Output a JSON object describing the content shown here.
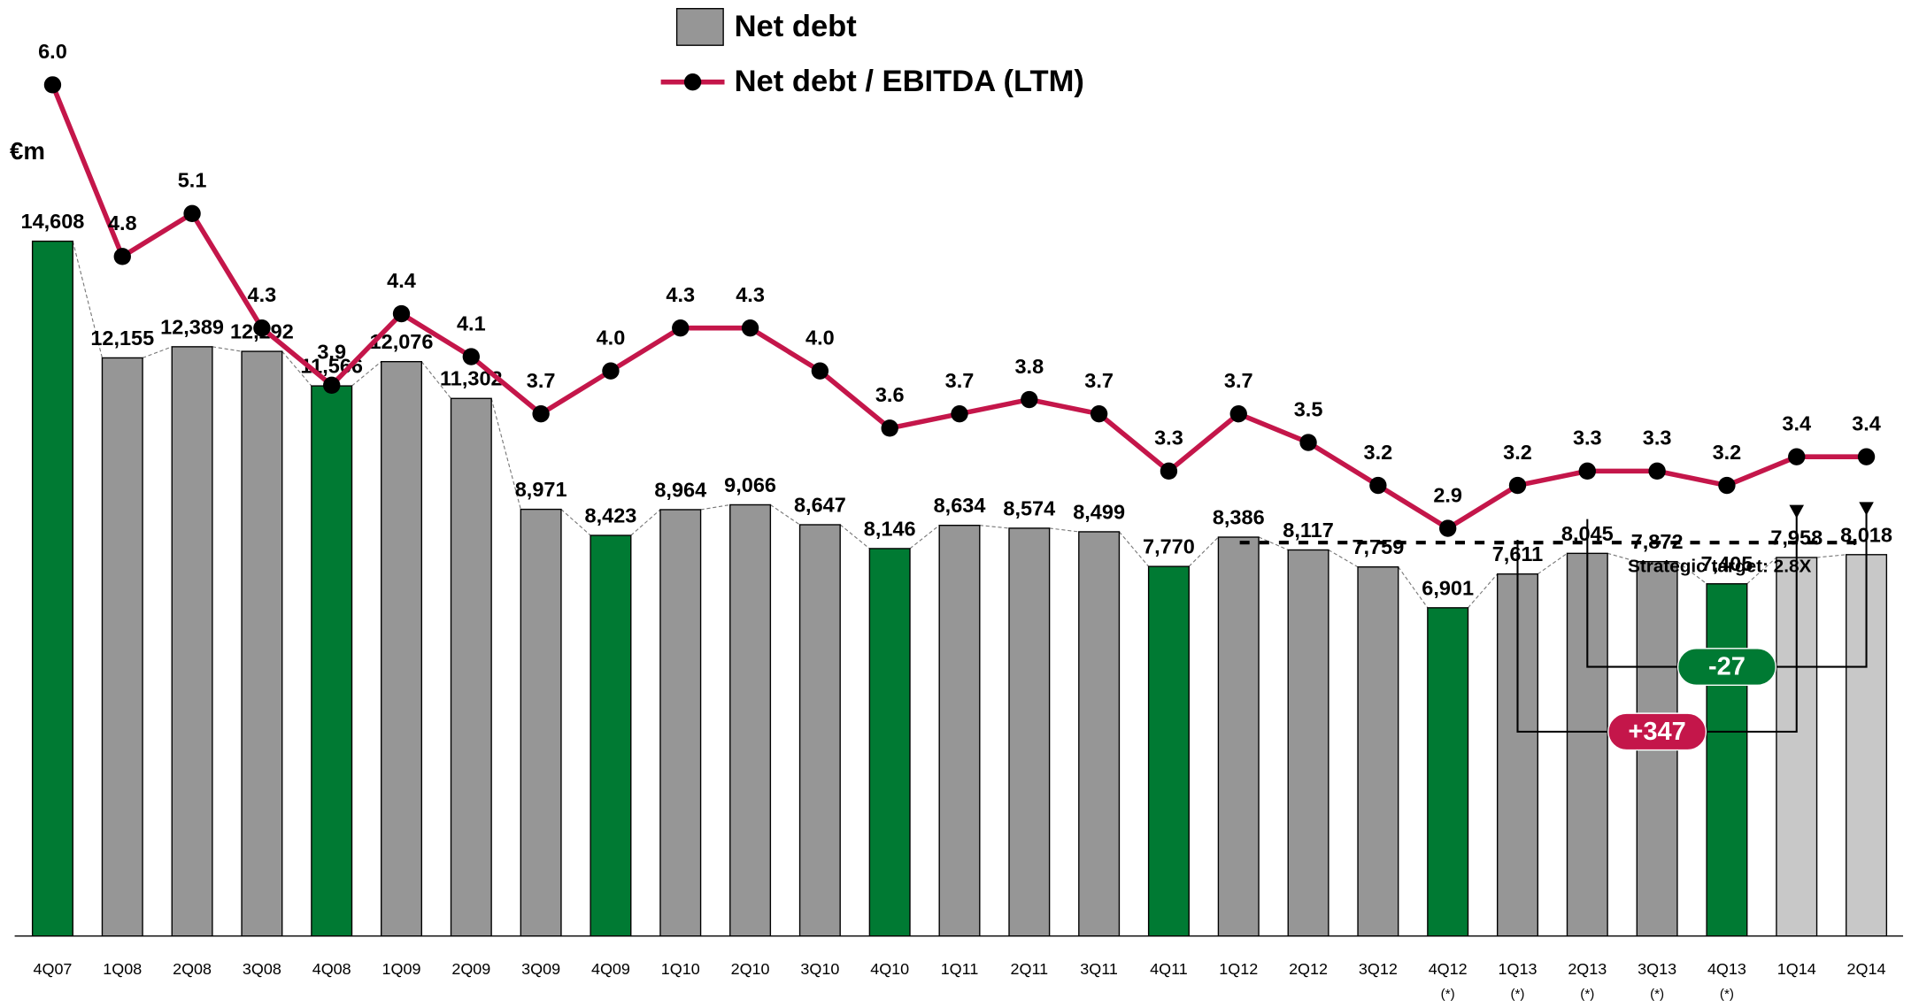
{
  "chart_data": {
    "type": "bar",
    "unit_label": "€m",
    "categories": [
      "4Q07",
      "1Q08",
      "2Q08",
      "3Q08",
      "4Q08",
      "1Q09",
      "2Q09",
      "3Q09",
      "4Q09",
      "1Q10",
      "2Q10",
      "3Q10",
      "4Q10",
      "1Q11",
      "2Q11",
      "3Q11",
      "4Q11",
      "1Q12",
      "2Q12",
      "3Q12",
      "4Q12",
      "1Q13",
      "2Q13",
      "3Q13",
      "4Q13",
      "1Q14",
      "2Q14"
    ],
    "category_footnotes": [
      null,
      null,
      null,
      null,
      null,
      null,
      null,
      null,
      null,
      null,
      null,
      null,
      null,
      null,
      null,
      null,
      null,
      null,
      null,
      null,
      "(*)",
      "(*)",
      "(*)",
      "(*)",
      "(*)",
      null,
      null
    ],
    "series": [
      {
        "name": "Net debt",
        "type": "bar",
        "color": "#969696",
        "colors": [
          "#007a33",
          "#969696",
          "#969696",
          "#969696",
          "#007a33",
          "#969696",
          "#969696",
          "#969696",
          "#007a33",
          "#969696",
          "#969696",
          "#969696",
          "#007a33",
          "#969696",
          "#969696",
          "#969696",
          "#007a33",
          "#969696",
          "#969696",
          "#969696",
          "#007a33",
          "#969696",
          "#969696",
          "#969696",
          "#007a33",
          "#c8c8c8",
          "#c8c8c8"
        ],
        "values": [
          14608,
          12155,
          12389,
          12292,
          11566,
          12076,
          11302,
          8971,
          8423,
          8964,
          9066,
          8647,
          8146,
          8634,
          8574,
          8499,
          7770,
          8386,
          8117,
          7759,
          6901,
          7611,
          8045,
          7872,
          7405,
          7958,
          8018
        ],
        "value_labels": [
          "14,608",
          "12,155",
          "12,389",
          "12,292",
          "11,566",
          "12,076",
          "11,302",
          "8,971",
          "8,423",
          "8,964",
          "9,066",
          "8,647",
          "8,146",
          "8,634",
          "8,574",
          "8,499",
          "7,770",
          "8,386",
          "8,117",
          "7,759",
          "6,901",
          "7,611",
          "8,045",
          "7,872",
          "7,405",
          "7,958",
          "8,018"
        ]
      },
      {
        "name": "Net debt / EBITDA (LTM)",
        "type": "line",
        "axis": "y2",
        "color": "#c4164a",
        "marker_color": "#000000",
        "values": [
          6.0,
          4.8,
          5.1,
          4.3,
          3.9,
          4.4,
          4.1,
          3.7,
          4.0,
          4.3,
          4.3,
          4.0,
          3.6,
          3.7,
          3.8,
          3.7,
          3.3,
          3.7,
          3.5,
          3.2,
          2.9,
          3.2,
          3.3,
          3.3,
          3.2,
          3.4,
          3.4
        ],
        "value_labels": [
          "6.0",
          "4.8",
          "5.1",
          "4.3",
          "3.9",
          "4.4",
          "4.1",
          "3.7",
          "4.0",
          "4.3",
          "4.3",
          "4.0",
          "3.6",
          "3.7",
          "3.8",
          "3.7",
          "3.3",
          "3.7",
          "3.5",
          "3.2",
          "2.9",
          "3.2",
          "3.3",
          "3.3",
          "3.2",
          "3.4",
          "3.4"
        ]
      }
    ],
    "ylim": [
      0,
      19550
    ],
    "y2lim": [
      0.05,
      6.55
    ],
    "target": {
      "value": 2.8,
      "label": "Strategic target: 2.8X",
      "from": "4Q12",
      "to": "2Q14"
    },
    "annotations": [
      {
        "label": "+347",
        "from": "1Q13",
        "to": "1Q14",
        "color": "#c4164a"
      },
      {
        "label": "-27",
        "from": "2Q13",
        "to": "2Q14",
        "color": "#007a33"
      }
    ]
  }
}
